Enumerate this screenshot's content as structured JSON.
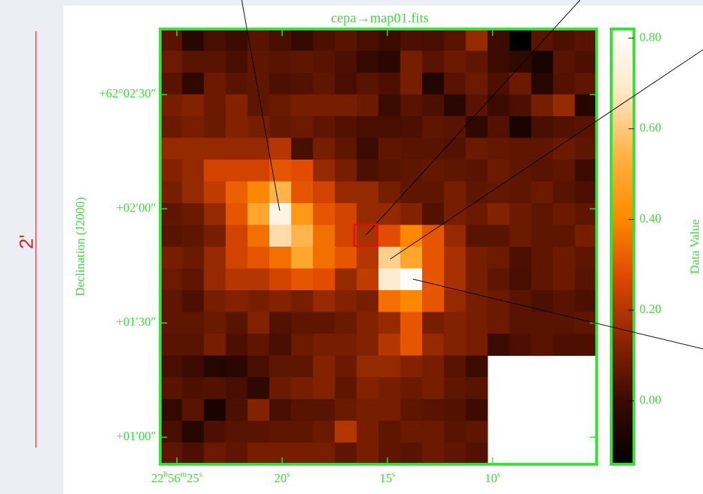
{
  "chart_data": {
    "type": "heatmap",
    "title": "cepa→map01.fits",
    "y_label": "Declination (J2000)",
    "colorbar_label": "Data Value",
    "scale_bar_label": "2'",
    "colormap": [
      "#000000",
      "#3a0a00",
      "#8b2500",
      "#e04800",
      "#ff8c00",
      "#ffb347",
      "#ffe8c8",
      "#ffffff"
    ],
    "frame_color": "#2ee82e",
    "zlim": [
      -0.14,
      0.82
    ],
    "zticks": [
      {
        "value": 0,
        "label": "0.00"
      },
      {
        "value": 0.2,
        "label": "0.20"
      },
      {
        "value": 0.4,
        "label": "0.40"
      },
      {
        "value": 0.6,
        "label": "0.60"
      },
      {
        "value": 0.8,
        "label": "0.80"
      }
    ],
    "xlim": [
      25.79,
      5.06
    ],
    "xticks": [
      {
        "value": 25,
        "label": [
          "22",
          "h",
          "56",
          "m",
          "25",
          "s"
        ]
      },
      {
        "value": 20,
        "label": [
          "20",
          "s"
        ]
      },
      {
        "value": 15,
        "label": [
          "15",
          "s"
        ]
      },
      {
        "value": 10,
        "label": [
          "10",
          "s"
        ]
      }
    ],
    "ylim": [
      223252.9,
      223367.2
    ],
    "yticks": [
      {
        "value": 223350,
        "label": "+62°02′30″"
      },
      {
        "value": 223320,
        "label": "+02′00″"
      },
      {
        "value": 223290,
        "label": "+01′30″"
      },
      {
        "value": 223260,
        "label": "+01′00″"
      }
    ],
    "values": [
      [
        0.05,
        -0.05,
        0.02,
        0.0,
        0.05,
        0.02,
        -0.02,
        0.03,
        0.05,
        0.02,
        0.0,
        0.03,
        0.02,
        0.05,
        0.15,
        0.0,
        -0.14,
        0.05,
        0.03,
        0.05
      ],
      [
        0.08,
        0.05,
        0.05,
        0.02,
        0.06,
        0.05,
        0.06,
        0.05,
        0.03,
        -0.02,
        -0.04,
        0.1,
        0.05,
        0.08,
        0.06,
        0.0,
        -0.03,
        -0.08,
        0.05,
        0.03
      ],
      [
        0.05,
        -0.03,
        0.08,
        0.05,
        0.06,
        0.03,
        0.04,
        0.06,
        0.02,
        0.05,
        0.03,
        0.1,
        -0.06,
        0.05,
        0.08,
        0.03,
        0.08,
        -0.05,
        0.04,
        0.06
      ],
      [
        0.1,
        0.12,
        0.08,
        0.12,
        0.06,
        0.08,
        0.1,
        0.1,
        0.1,
        0.08,
        0.0,
        0.05,
        0.03,
        -0.04,
        0.05,
        0.0,
        0.03,
        0.1,
        0.15,
        -0.05
      ],
      [
        0.08,
        0.1,
        0.08,
        0.12,
        0.1,
        0.07,
        0.08,
        0.06,
        0.04,
        0.02,
        0.02,
        0.03,
        0.06,
        0.05,
        -0.03,
        0.04,
        -0.08,
        0.02,
        0.04,
        0.05
      ],
      [
        0.15,
        0.15,
        0.15,
        0.15,
        0.15,
        0.2,
        0.02,
        0.1,
        0.06,
        0.0,
        0.06,
        0.05,
        0.05,
        0.04,
        0.08,
        0.07,
        0.06,
        0.06,
        0.08,
        0.06
      ],
      [
        0.12,
        0.15,
        0.25,
        0.25,
        0.25,
        0.3,
        0.28,
        0.15,
        0.1,
        0.03,
        0.05,
        0.06,
        0.07,
        0.06,
        0.05,
        0.08,
        0.06,
        0.05,
        0.06,
        0.0
      ],
      [
        0.1,
        0.15,
        0.22,
        0.32,
        0.4,
        0.55,
        0.3,
        0.25,
        0.15,
        0.15,
        0.1,
        0.06,
        0.06,
        0.1,
        0.06,
        0.07,
        0.06,
        0.08,
        0.05,
        0.03
      ],
      [
        0.06,
        0.08,
        0.15,
        0.3,
        0.5,
        0.75,
        0.45,
        0.3,
        0.25,
        0.15,
        0.15,
        0.12,
        0.04,
        0.1,
        0.08,
        0.12,
        0.08,
        0.06,
        0.08,
        0.06
      ],
      [
        0.05,
        0.06,
        0.1,
        0.25,
        0.35,
        0.65,
        0.55,
        0.35,
        0.25,
        0.18,
        0.28,
        0.4,
        0.3,
        0.15,
        0.05,
        0.05,
        0.08,
        0.06,
        0.06,
        0.1
      ],
      [
        0.1,
        0.08,
        0.15,
        0.25,
        0.3,
        0.35,
        0.5,
        0.35,
        0.3,
        0.2,
        0.62,
        0.5,
        0.3,
        0.18,
        0.1,
        0.08,
        0.03,
        0.06,
        0.08,
        0.06
      ],
      [
        0.08,
        0.06,
        0.15,
        0.2,
        0.2,
        0.25,
        0.3,
        0.28,
        0.15,
        0.22,
        0.7,
        0.8,
        0.3,
        0.18,
        0.1,
        0.06,
        0.02,
        0.06,
        0.08,
        0.05
      ],
      [
        0.06,
        0.03,
        0.1,
        0.12,
        0.1,
        0.12,
        0.1,
        0.15,
        0.12,
        0.1,
        0.35,
        0.4,
        0.3,
        0.15,
        0.1,
        0.08,
        0.05,
        0.03,
        0.05,
        0.03
      ],
      [
        0.06,
        0.06,
        0.08,
        0.05,
        0.12,
        0.04,
        0.06,
        0.06,
        0.08,
        0.12,
        0.15,
        0.3,
        0.1,
        0.12,
        0.1,
        0.08,
        0.05,
        0.05,
        0.05,
        0.06
      ],
      [
        0.05,
        0.05,
        0.1,
        0.03,
        0.06,
        0.02,
        0.08,
        0.1,
        0.1,
        0.12,
        0.2,
        0.3,
        0.15,
        0.12,
        0.1,
        0.0,
        0.03,
        0.05,
        0.03,
        0.03
      ],
      [
        0.02,
        0.0,
        -0.05,
        -0.04,
        0.02,
        0.06,
        0.06,
        0.12,
        0.08,
        0.15,
        0.15,
        0.12,
        0.1,
        0.05,
        0.0,
        null,
        null,
        null,
        null,
        null
      ],
      [
        0.05,
        0.03,
        0.04,
        0.02,
        -0.03,
        0.08,
        0.1,
        0.12,
        0.06,
        0.12,
        0.1,
        0.08,
        0.1,
        0.06,
        0.05,
        null,
        null,
        null,
        null,
        null
      ],
      [
        -0.02,
        0.05,
        -0.08,
        0.03,
        0.12,
        0.02,
        0.05,
        0.05,
        0.08,
        0.1,
        0.1,
        0.06,
        0.05,
        0.04,
        0.0,
        null,
        null,
        null,
        null,
        null
      ],
      [
        0.02,
        -0.05,
        0.03,
        0.05,
        0.05,
        0.06,
        0.06,
        0.08,
        0.2,
        0.1,
        0.06,
        0.08,
        0.08,
        0.05,
        0.06,
        null,
        null,
        null,
        null,
        null
      ],
      [
        0.06,
        0.03,
        0.08,
        0.06,
        0.1,
        0.1,
        0.1,
        0.1,
        0.06,
        0.1,
        0.06,
        0.05,
        0.08,
        0.06,
        0.04,
        null,
        null,
        null,
        null,
        null
      ]
    ]
  }
}
